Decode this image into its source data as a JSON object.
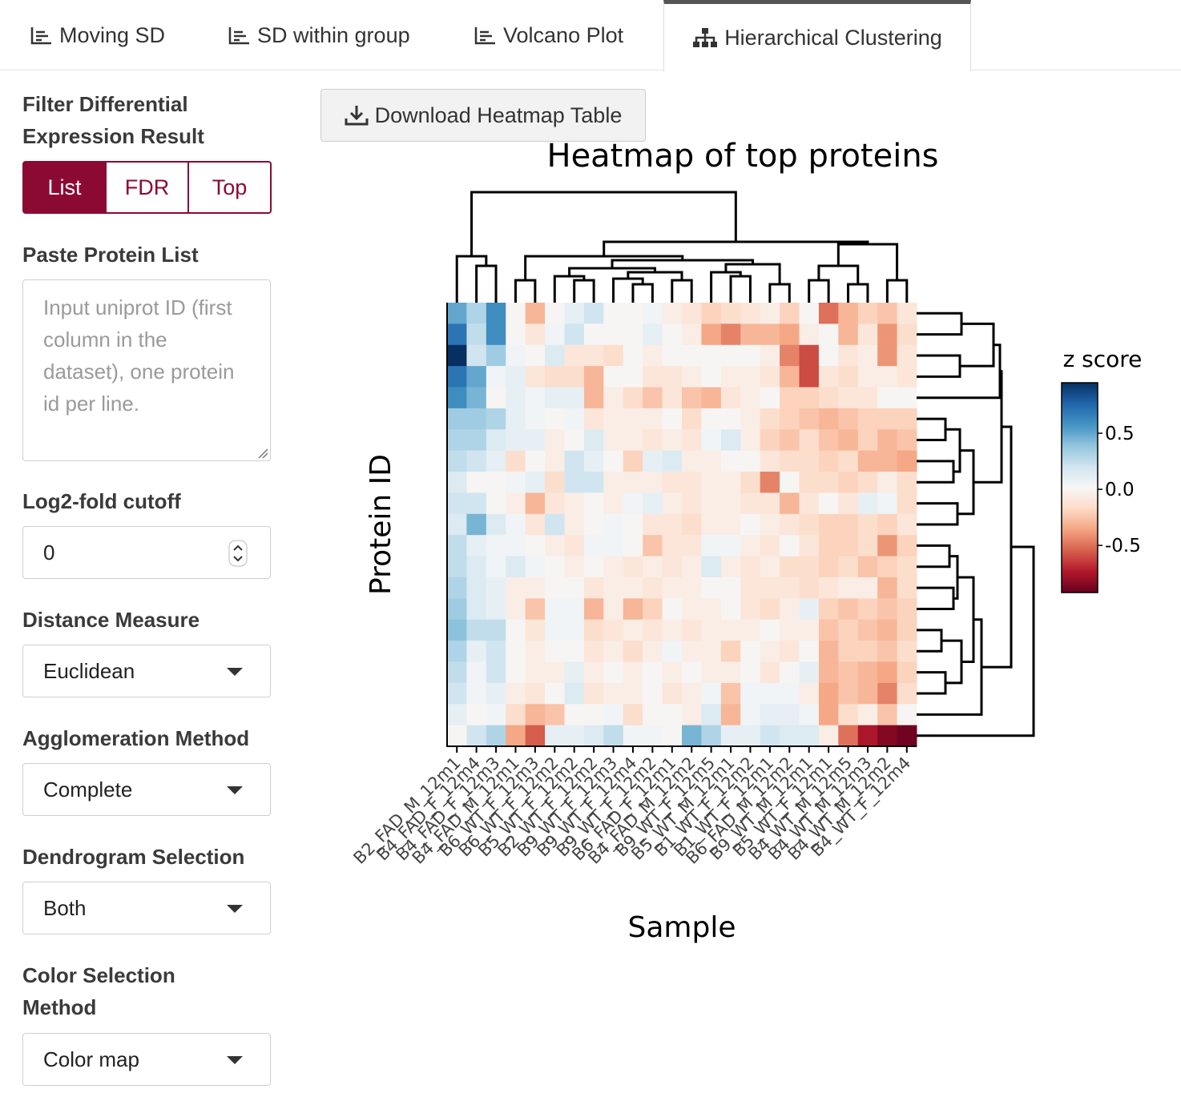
{
  "tabs": [
    "Moving SD",
    "SD within group",
    "Volcano Plot",
    "Hierarchical Clustering"
  ],
  "sidebar": {
    "filter_title": "Filter Differential Expression Result",
    "filter_options": [
      "List",
      "FDR",
      "Top"
    ],
    "protein_list_label": "Paste Protein List",
    "protein_list_placeholder": "Input uniprot ID (first column in the dataset), one protein id per line.",
    "log2_label": "Log2-fold cutoff",
    "log2_value": 0,
    "distance_label": "Distance Measure",
    "distance_value": "Euclidean",
    "agglomeration_label": "Agglomeration Method",
    "agglomeration_value": "Complete",
    "dendrogram_label": "Dendrogram Selection",
    "dendrogram_value": "Both",
    "color_label": "Color Selection Method",
    "color_value": "Color map"
  },
  "download_button": "Download Heatmap Table",
  "chart_data": {
    "type": "heatmap",
    "title": "Heatmap of top proteins",
    "x_label": "Sample",
    "y_label": "Protein ID",
    "colorbar_title": "z score",
    "categories": [
      "B2_FAD_M_12m1",
      "B4_FAD_F_12m4",
      "B4_FAD_F_12m3",
      "B4_FAD_M_12m1",
      "B6_WT_F_12m3",
      "B6_WT_F_12m2",
      "B5_WT_F_12m2",
      "B2_WT_F_12m2",
      "B9_WT_F_12m3",
      "B9_WT_F_12m4",
      "B9_WT_F_12m2",
      "B6_FAD_F_12m1",
      "B4_FAD_M_12m2",
      "B9_WT_F_12m5",
      "B5_WT_M_12m1",
      "B1_WT_F_12m2",
      "B1_WT_F_12m1",
      "B6_FAD_M_12m2",
      "B9_WT_M_12m1",
      "B5_WT_F_12m1",
      "B4_WT_M_12m5",
      "B4_WT_M_12m3",
      "B4_WT_M_12m2",
      "B4_WT_F_12m4"
    ],
    "values": [
      [
        0.5,
        0.3,
        0.6,
        0,
        -0.3,
        0,
        0.1,
        0.2,
        0,
        0,
        0.05,
        -0.05,
        -0.1,
        -0.2,
        -0.15,
        -0.1,
        -0.05,
        -0.2,
        0,
        -0.5,
        -0.3,
        -0.2,
        -0.25,
        -0.1
      ],
      [
        0.7,
        0.25,
        0.6,
        0,
        -0.1,
        0.05,
        0.2,
        0,
        0,
        0,
        0.1,
        0,
        -0.05,
        -0.35,
        -0.45,
        -0.3,
        -0.3,
        -0.35,
        -0.05,
        0,
        -0.3,
        -0.1,
        -0.4,
        -0.15
      ],
      [
        0.95,
        0.2,
        0.35,
        0.05,
        0,
        0.15,
        -0.1,
        -0.1,
        -0.15,
        0,
        -0.05,
        0,
        0,
        0,
        0,
        0,
        -0.05,
        -0.45,
        -0.6,
        0,
        -0.1,
        -0.05,
        -0.4,
        -0.1
      ],
      [
        0.7,
        0.5,
        0.05,
        0.1,
        -0.1,
        -0.15,
        -0.15,
        -0.3,
        0,
        0,
        -0.1,
        -0.1,
        -0.05,
        0,
        -0.05,
        -0.05,
        -0.1,
        -0.3,
        -0.6,
        -0.1,
        -0.15,
        -0.05,
        -0.05,
        -0.1
      ],
      [
        0.6,
        0.45,
        0,
        0.1,
        0.05,
        0.1,
        0.1,
        -0.3,
        -0.05,
        -0.15,
        -0.25,
        -0.1,
        -0.25,
        -0.3,
        -0.1,
        -0.05,
        0,
        -0.2,
        -0.2,
        -0.15,
        -0.1,
        -0.1,
        0,
        0
      ],
      [
        0.35,
        0.35,
        0.3,
        0.1,
        0.05,
        0,
        0.05,
        -0.1,
        -0.05,
        -0.05,
        -0.05,
        0,
        -0.15,
        0,
        0,
        -0.05,
        -0.15,
        -0.2,
        -0.25,
        -0.3,
        -0.25,
        -0.2,
        -0.2,
        -0.2
      ],
      [
        0.3,
        0.3,
        0.15,
        0.1,
        0.1,
        -0.05,
        0,
        0.15,
        -0.05,
        -0.05,
        -0.1,
        -0.05,
        -0.1,
        0.05,
        0.15,
        -0.05,
        -0.2,
        -0.25,
        -0.15,
        -0.25,
        -0.3,
        -0.2,
        -0.3,
        -0.25
      ],
      [
        0.25,
        0.2,
        0.1,
        -0.15,
        0,
        -0.05,
        0.2,
        0.1,
        0,
        -0.2,
        0.1,
        0.15,
        -0.05,
        -0.05,
        0,
        0,
        -0.1,
        -0.15,
        -0.15,
        -0.2,
        -0.15,
        -0.3,
        -0.3,
        -0.35
      ],
      [
        0.15,
        0,
        0,
        0.05,
        0.1,
        -0.15,
        0.2,
        0.2,
        -0.05,
        -0.05,
        -0.05,
        -0.1,
        -0.1,
        -0.05,
        -0.05,
        -0.15,
        -0.45,
        0,
        -0.15,
        -0.15,
        -0.2,
        -0.15,
        -0.05,
        -0.15
      ],
      [
        0.2,
        0.2,
        0,
        -0.05,
        -0.3,
        -0.1,
        -0.05,
        0,
        -0.05,
        0.05,
        0.1,
        -0.05,
        -0.1,
        -0.05,
        -0.05,
        -0.1,
        -0.1,
        -0.3,
        -0.1,
        0,
        -0.1,
        0.1,
        0.05,
        -0.15
      ],
      [
        0.15,
        0.45,
        0.15,
        0.05,
        -0.1,
        0.2,
        -0.05,
        0,
        0.05,
        0,
        -0.1,
        -0.1,
        -0.15,
        -0.05,
        -0.05,
        0,
        -0.05,
        -0.1,
        -0.15,
        -0.2,
        -0.2,
        -0.15,
        -0.2,
        -0.1
      ],
      [
        0.25,
        0.1,
        0.05,
        0.05,
        0,
        -0.05,
        -0.1,
        0.05,
        0.05,
        0,
        -0.25,
        -0.1,
        -0.1,
        0.05,
        0.05,
        -0.05,
        -0.1,
        0,
        -0.1,
        -0.2,
        -0.2,
        -0.15,
        -0.4,
        -0.2
      ],
      [
        0.25,
        0.15,
        0.05,
        0.15,
        0.05,
        0,
        -0.05,
        0,
        -0.05,
        -0.1,
        -0.05,
        -0.1,
        -0.05,
        0.15,
        -0.05,
        -0.1,
        -0.05,
        -0.15,
        -0.15,
        -0.2,
        -0.15,
        -0.25,
        -0.2,
        -0.15
      ],
      [
        0.3,
        0.15,
        0.1,
        -0.05,
        -0.05,
        0,
        0,
        -0.1,
        -0.05,
        -0.05,
        -0.1,
        -0.05,
        -0.05,
        0,
        0,
        -0.1,
        -0.1,
        -0.1,
        -0.15,
        -0.1,
        -0.05,
        -0.05,
        -0.3,
        -0.15
      ],
      [
        0.35,
        0.15,
        0.1,
        -0.05,
        -0.25,
        0.05,
        0.05,
        -0.3,
        -0.05,
        -0.3,
        -0.2,
        0,
        -0.05,
        -0.05,
        0,
        -0.1,
        -0.15,
        -0.05,
        0.1,
        -0.2,
        -0.25,
        -0.2,
        -0.25,
        -0.2
      ],
      [
        0.4,
        0.25,
        0.25,
        0,
        -0.1,
        0.05,
        0.05,
        -0.15,
        -0.1,
        -0.05,
        -0.1,
        -0.05,
        -0.1,
        -0.05,
        -0.05,
        -0.05,
        0,
        -0.05,
        -0.05,
        -0.25,
        -0.2,
        -0.25,
        -0.3,
        -0.2
      ],
      [
        0.3,
        0.1,
        0.2,
        0,
        -0.05,
        0,
        0,
        -0.1,
        -0.05,
        -0.15,
        -0.05,
        0.05,
        -0.05,
        -0.05,
        -0.2,
        0,
        -0.05,
        -0.1,
        0,
        -0.3,
        -0.2,
        -0.2,
        -0.25,
        -0.15
      ],
      [
        0.25,
        0.05,
        0.2,
        0,
        -0.05,
        -0.05,
        0.1,
        -0.05,
        0,
        -0.05,
        0,
        -0.05,
        0,
        -0.05,
        -0.05,
        0,
        -0.1,
        0,
        0.1,
        -0.3,
        -0.25,
        -0.3,
        -0.35,
        -0.2
      ],
      [
        0.2,
        0.05,
        0.1,
        -0.05,
        -0.1,
        0,
        0.15,
        -0.1,
        -0.05,
        -0.05,
        0,
        -0.1,
        -0.05,
        0.05,
        -0.25,
        0.05,
        0.05,
        0.05,
        -0.05,
        -0.35,
        -0.25,
        -0.3,
        -0.45,
        -0.15
      ],
      [
        0.1,
        0,
        0.05,
        -0.15,
        -0.3,
        -0.25,
        0,
        0,
        0.05,
        -0.15,
        0,
        0,
        -0.05,
        0.15,
        -0.3,
        0.05,
        0.1,
        0.1,
        0.05,
        -0.35,
        -0.15,
        -0.05,
        -0.25,
        0
      ],
      [
        0,
        0.2,
        0.3,
        -0.35,
        -0.55,
        0.1,
        0.1,
        0.15,
        0.25,
        0.05,
        0.05,
        0,
        0.45,
        0.3,
        0.1,
        0.1,
        0.2,
        0.15,
        0.15,
        -0.05,
        -0.5,
        -0.75,
        -0.85,
        -0.9
      ]
    ],
    "zlim": [
      -0.92,
      0.95
    ],
    "zticks": [
      0.5,
      {
        "value": 0,
        "label": "0.0"
      },
      -0.5
    ],
    "colors": [
      "#67001f",
      "#b2182b",
      "#d6604d",
      "#f4a582",
      "#fddbc7",
      "#f7f7f7",
      "#d1e5f0",
      "#92c5de",
      "#4393c3",
      "#2166ac",
      "#053061"
    ]
  }
}
